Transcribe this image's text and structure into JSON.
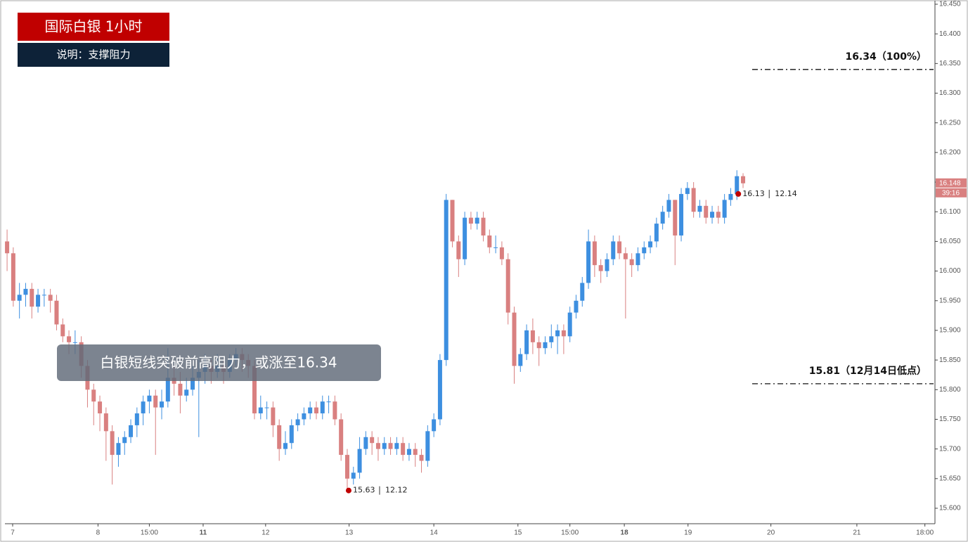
{
  "chart_data": {
    "type": "candlestick",
    "title": "国际白银  1小时",
    "subtitle": "说明：支撑阻力",
    "annotation": "白银短线突破前高阻力，或涨至16.34",
    "up_color": "#3d8fe0",
    "down_color": "#d98080",
    "ylim": [
      15.6,
      16.45
    ],
    "yticks": [
      {
        "value": 15.6,
        "label": "15.600"
      },
      {
        "value": 15.65,
        "label": "15.650"
      },
      {
        "value": 15.7,
        "label": "15.700"
      },
      {
        "value": 15.75,
        "label": "15.750"
      },
      {
        "value": 15.8,
        "label": "15.800"
      },
      {
        "value": 15.85,
        "label": "15.850"
      },
      {
        "value": 15.9,
        "label": "15.900"
      },
      {
        "value": 15.95,
        "label": "15.950"
      },
      {
        "value": 16.0,
        "label": "16.000"
      },
      {
        "value": 16.05,
        "label": "16.050"
      },
      {
        "value": 16.1,
        "label": "16.100"
      },
      {
        "value": 16.15,
        "label": "16.150"
      },
      {
        "value": 16.2,
        "label": "16.200"
      },
      {
        "value": 16.25,
        "label": "16.250"
      },
      {
        "value": 16.3,
        "label": "16.300"
      },
      {
        "value": 16.35,
        "label": "16.350"
      },
      {
        "value": 16.4,
        "label": "16.400"
      },
      {
        "value": 16.45,
        "label": "16.450"
      }
    ],
    "xlim": [
      -0.35,
      149.8
    ],
    "xticks": [
      {
        "value": 0.9,
        "label": "7"
      },
      {
        "value": 14.7,
        "label": "8"
      },
      {
        "value": 23,
        "label": "15:00"
      },
      {
        "value": 31.7,
        "label": "11",
        "bold": true
      },
      {
        "value": 41.8,
        "label": "12"
      },
      {
        "value": 55.3,
        "label": "13"
      },
      {
        "value": 69,
        "label": "14"
      },
      {
        "value": 82.6,
        "label": "15"
      },
      {
        "value": 91,
        "label": "15:00"
      },
      {
        "value": 99.8,
        "label": "18",
        "bold": true
      },
      {
        "value": 110.1,
        "label": "19"
      },
      {
        "value": 123.5,
        "label": "20"
      },
      {
        "value": 137.4,
        "label": "21"
      },
      {
        "value": 148.4,
        "label": "18:00"
      }
    ],
    "levels": [
      {
        "value": 16.34,
        "label": "16.34（100%）"
      },
      {
        "value": 15.81,
        "label": "15.81（12月14日低点）"
      }
    ],
    "markers": [
      {
        "kind": "high",
        "value": 16.13,
        "date": "12.14"
      },
      {
        "kind": "low",
        "value": 15.63,
        "date": "12.12"
      }
    ],
    "last_price": {
      "value": 16.148,
      "countdown": "39:16",
      "color": "#d98080"
    },
    "candles": [
      [
        16.05,
        16.07,
        16.0,
        16.03
      ],
      [
        16.03,
        16.04,
        15.94,
        15.95
      ],
      [
        15.95,
        15.98,
        15.92,
        15.96
      ],
      [
        15.96,
        15.98,
        15.94,
        15.97
      ],
      [
        15.97,
        15.98,
        15.92,
        15.94
      ],
      [
        15.94,
        15.97,
        15.93,
        15.96
      ],
      [
        15.96,
        15.97,
        15.94,
        15.96
      ],
      [
        15.96,
        15.97,
        15.93,
        15.95
      ],
      [
        15.95,
        15.96,
        15.9,
        15.91
      ],
      [
        15.91,
        15.92,
        15.88,
        15.89
      ],
      [
        15.89,
        15.9,
        15.86,
        15.88
      ],
      [
        15.88,
        15.9,
        15.86,
        15.88
      ],
      [
        15.88,
        15.89,
        15.82,
        15.84
      ],
      [
        15.84,
        15.85,
        15.77,
        15.8
      ],
      [
        15.8,
        15.81,
        15.74,
        15.78
      ],
      [
        15.78,
        15.79,
        15.73,
        15.76
      ],
      [
        15.76,
        15.77,
        15.68,
        15.73
      ],
      [
        15.73,
        15.74,
        15.64,
        15.69
      ],
      [
        15.69,
        15.72,
        15.67,
        15.71
      ],
      [
        15.71,
        15.73,
        15.69,
        15.72
      ],
      [
        15.72,
        15.75,
        15.71,
        15.74
      ],
      [
        15.74,
        15.77,
        15.72,
        15.76
      ],
      [
        15.76,
        15.79,
        15.74,
        15.78
      ],
      [
        15.78,
        15.8,
        15.76,
        15.79
      ],
      [
        15.79,
        15.8,
        15.69,
        15.77
      ],
      [
        15.77,
        15.8,
        15.75,
        15.78
      ],
      [
        15.78,
        15.87,
        15.77,
        15.82
      ],
      [
        15.82,
        15.84,
        15.79,
        15.81
      ],
      [
        15.81,
        15.83,
        15.76,
        15.79
      ],
      [
        15.79,
        15.82,
        15.78,
        15.8
      ],
      [
        15.8,
        15.84,
        15.79,
        15.82
      ],
      [
        15.82,
        15.85,
        15.72,
        15.83
      ],
      [
        15.83,
        15.86,
        15.81,
        15.84
      ],
      [
        15.84,
        15.85,
        15.81,
        15.83
      ],
      [
        15.83,
        15.86,
        15.82,
        15.84
      ],
      [
        15.84,
        15.85,
        15.81,
        15.83
      ],
      [
        15.83,
        15.86,
        15.82,
        15.85
      ],
      [
        15.85,
        15.87,
        15.84,
        15.86
      ],
      [
        15.86,
        15.87,
        15.83,
        15.85
      ],
      [
        15.85,
        15.86,
        15.82,
        15.84
      ],
      [
        15.84,
        15.85,
        15.75,
        15.76
      ],
      [
        15.76,
        15.79,
        15.75,
        15.77
      ],
      [
        15.77,
        15.78,
        15.75,
        15.77
      ],
      [
        15.77,
        15.78,
        15.72,
        15.74
      ],
      [
        15.74,
        15.75,
        15.68,
        15.7
      ],
      [
        15.7,
        15.73,
        15.69,
        15.71
      ],
      [
        15.71,
        15.75,
        15.7,
        15.74
      ],
      [
        15.74,
        15.76,
        15.73,
        15.75
      ],
      [
        15.75,
        15.77,
        15.74,
        15.76
      ],
      [
        15.76,
        15.78,
        15.75,
        15.77
      ],
      [
        15.77,
        15.78,
        15.75,
        15.76
      ],
      [
        15.76,
        15.79,
        15.75,
        15.78
      ],
      [
        15.78,
        15.79,
        15.76,
        15.78
      ],
      [
        15.78,
        15.79,
        15.74,
        15.75
      ],
      [
        15.75,
        15.76,
        15.68,
        15.69
      ],
      [
        15.69,
        15.7,
        15.63,
        15.65
      ],
      [
        15.65,
        15.67,
        15.64,
        15.66
      ],
      [
        15.66,
        15.72,
        15.65,
        15.7
      ],
      [
        15.7,
        15.73,
        15.69,
        15.72
      ],
      [
        15.72,
        15.73,
        15.69,
        15.71
      ],
      [
        15.71,
        15.72,
        15.68,
        15.7
      ],
      [
        15.7,
        15.72,
        15.69,
        15.71
      ],
      [
        15.71,
        15.72,
        15.69,
        15.7
      ],
      [
        15.7,
        15.72,
        15.69,
        15.71
      ],
      [
        15.71,
        15.72,
        15.68,
        15.69
      ],
      [
        15.69,
        15.71,
        15.68,
        15.7
      ],
      [
        15.7,
        15.71,
        15.67,
        15.69
      ],
      [
        15.69,
        15.7,
        15.66,
        15.68
      ],
      [
        15.68,
        15.74,
        15.67,
        15.73
      ],
      [
        15.73,
        15.76,
        15.72,
        15.75
      ],
      [
        15.75,
        15.86,
        15.74,
        15.85
      ],
      [
        15.85,
        16.13,
        15.84,
        16.12
      ],
      [
        16.12,
        16.12,
        16.04,
        16.05
      ],
      [
        16.05,
        16.06,
        15.99,
        16.02
      ],
      [
        16.02,
        16.1,
        16.01,
        16.09
      ],
      [
        16.09,
        16.1,
        16.07,
        16.08
      ],
      [
        16.08,
        16.1,
        16.07,
        16.09
      ],
      [
        16.09,
        16.1,
        16.05,
        16.06
      ],
      [
        16.06,
        16.07,
        16.03,
        16.04
      ],
      [
        16.04,
        16.06,
        16.03,
        16.04
      ],
      [
        16.04,
        16.05,
        16.01,
        16.02
      ],
      [
        16.02,
        16.03,
        15.91,
        15.93
      ],
      [
        15.93,
        15.94,
        15.81,
        15.84
      ],
      [
        15.84,
        15.87,
        15.83,
        15.86
      ],
      [
        15.86,
        15.91,
        15.85,
        15.9
      ],
      [
        15.9,
        15.92,
        15.86,
        15.88
      ],
      [
        15.88,
        15.89,
        15.84,
        15.87
      ],
      [
        15.87,
        15.89,
        15.86,
        15.88
      ],
      [
        15.88,
        15.91,
        15.87,
        15.89
      ],
      [
        15.89,
        15.91,
        15.86,
        15.9
      ],
      [
        15.9,
        15.91,
        15.86,
        15.89
      ],
      [
        15.89,
        15.94,
        15.88,
        15.93
      ],
      [
        15.93,
        15.96,
        15.92,
        15.95
      ],
      [
        15.95,
        15.99,
        15.94,
        15.98
      ],
      [
        15.98,
        16.07,
        15.97,
        16.05
      ],
      [
        16.05,
        16.06,
        15.99,
        16.01
      ],
      [
        16.01,
        16.02,
        15.98,
        16.0
      ],
      [
        16.0,
        16.03,
        15.99,
        16.02
      ],
      [
        16.02,
        16.06,
        16.01,
        16.05
      ],
      [
        16.05,
        16.06,
        16.02,
        16.03
      ],
      [
        16.03,
        16.04,
        15.92,
        16.02
      ],
      [
        16.02,
        16.03,
        15.99,
        16.01
      ],
      [
        16.01,
        16.04,
        16.0,
        16.03
      ],
      [
        16.03,
        16.05,
        16.02,
        16.04
      ],
      [
        16.04,
        16.06,
        16.03,
        16.05
      ],
      [
        16.05,
        16.09,
        16.04,
        16.08
      ],
      [
        16.08,
        16.11,
        16.07,
        16.1
      ],
      [
        16.1,
        16.13,
        16.09,
        16.12
      ],
      [
        16.12,
        16.12,
        16.01,
        16.06
      ],
      [
        16.06,
        16.14,
        16.05,
        16.13
      ],
      [
        16.13,
        16.15,
        16.12,
        16.14
      ],
      [
        16.14,
        16.15,
        16.09,
        16.1
      ],
      [
        16.1,
        16.12,
        16.09,
        16.11
      ],
      [
        16.11,
        16.12,
        16.08,
        16.09
      ],
      [
        16.09,
        16.11,
        16.08,
        16.1
      ],
      [
        16.1,
        16.11,
        16.08,
        16.09
      ],
      [
        16.09,
        16.13,
        16.08,
        16.12
      ],
      [
        16.12,
        16.14,
        16.11,
        16.13
      ],
      [
        16.13,
        16.17,
        16.12,
        16.16
      ],
      [
        16.16,
        16.165,
        16.14,
        16.148
      ]
    ]
  }
}
